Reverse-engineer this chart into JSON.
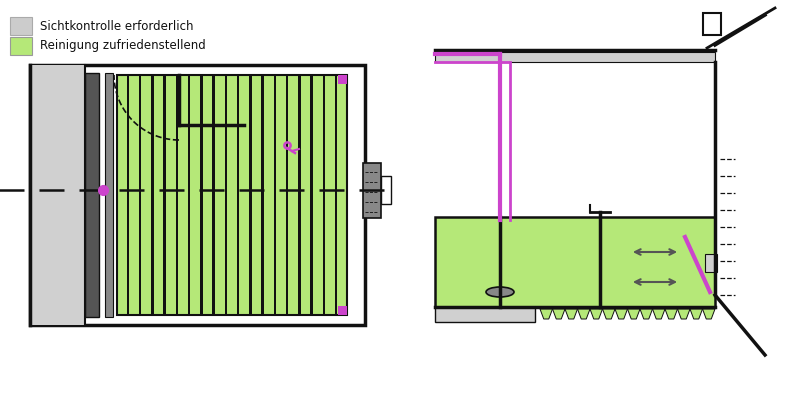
{
  "bg_color": "#ffffff",
  "light_green": "#b5e878",
  "light_gray": "#d0d0d0",
  "dark_gray": "#888888",
  "dark_gray2": "#555555",
  "purple": "#cc44cc",
  "black": "#111111",
  "legend_gray_label": "Sichtkontrolle erforderlich",
  "legend_green_label": "Reinigung zufriedenstellend",
  "legend_gray_color": "#cccccc",
  "legend_green_color": "#b5e878"
}
